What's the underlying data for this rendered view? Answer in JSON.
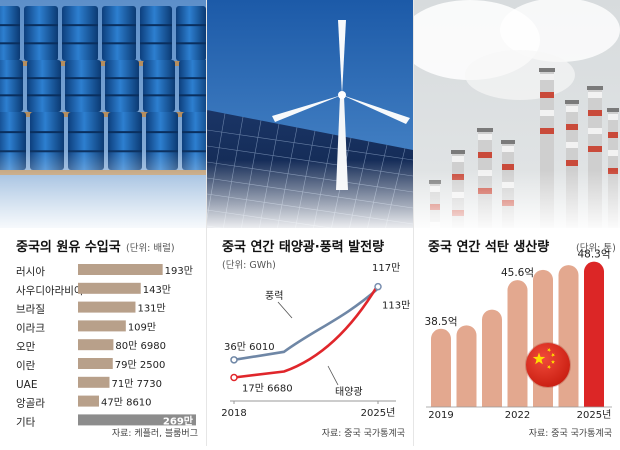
{
  "charts": [
    {
      "chart_data": {
        "type": "bar",
        "title": "중국의 원유 수입국",
        "unit": "(단위: 배럴)",
        "categories": [
          "러시아",
          "사우디아라비아",
          "브라질",
          "이라크",
          "오만",
          "이란",
          "UAE",
          "앙골라",
          "기타"
        ],
        "values": [
          1930000,
          1430000,
          1310000,
          1090000,
          806980,
          792500,
          717730,
          478610,
          2690000
        ],
        "value_labels": [
          "193만",
          "143만",
          "131만",
          "109만",
          "80만 6980",
          "79만 2500",
          "71만 7730",
          "47만 8610",
          "269만"
        ],
        "source": "자료: 케플러, 블룸버그"
      }
    },
    {
      "chart_data": {
        "type": "line",
        "title": "중국 연간 태양광·풍력 발전량",
        "unit": "(단위: GWh)",
        "x": [
          2018,
          2025
        ],
        "x_tick_labels": [
          "2018",
          "2025년"
        ],
        "series": [
          {
            "name": "풍력",
            "values": [
              366010,
              1130000
            ],
            "start_label": "36만 6010",
            "end_label": "113만",
            "color": "#6f87a6"
          },
          {
            "name": "태양광",
            "values": [
              176680,
              1170000
            ],
            "start_label": "17만 6680",
            "end_label": "117만",
            "color": "#e0262b"
          }
        ],
        "source": "자료: 중국 국가통계국"
      }
    },
    {
      "chart_data": {
        "type": "bar",
        "title": "중국 연간 석탄 생산량",
        "unit": "(단위: 톤)",
        "categories": [
          "2019",
          "2020",
          "2021",
          "2022",
          "2023",
          "2024",
          "2025"
        ],
        "x_tick_labels": [
          "2019",
          "",
          "",
          "2022",
          "",
          "",
          "2025년"
        ],
        "values": [
          38.5,
          39.0,
          41.3,
          45.6,
          47.1,
          47.8,
          48.3
        ],
        "value_labels": [
          "38.5억",
          "",
          "",
          "45.6억",
          "",
          "",
          "48.3억"
        ],
        "highlight_color": "#dc2626",
        "bar_color": "#e3a88f",
        "source": "자료: 중국 국가통계국"
      }
    }
  ],
  "colors": {
    "oil_bar": "#b8a08a",
    "other_bar": "#8c8c8c",
    "flag": "#de2910",
    "flag_star": "#ffde00"
  },
  "icons": [
    "oil-barrel-photo",
    "wind-solar-photo",
    "smokestack-photo",
    "china-flag-icon"
  ]
}
